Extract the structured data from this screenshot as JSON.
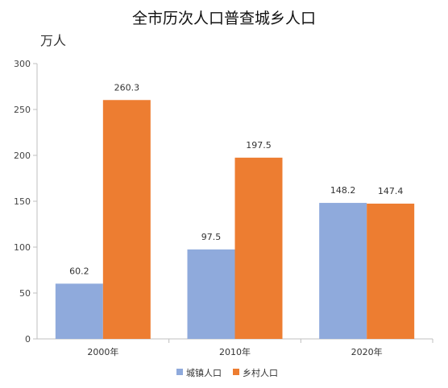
{
  "chart_data": {
    "type": "bar",
    "title": "全市历次人口普查城乡人口",
    "ylabel": "万人",
    "xlabel": "",
    "categories": [
      "2000年",
      "2010年",
      "2020年"
    ],
    "series": [
      {
        "name": "城镇人口",
        "values": [
          60.2,
          97.5,
          148.2
        ],
        "color": "#8FAADC"
      },
      {
        "name": "乡村人口",
        "values": [
          260.3,
          197.5,
          147.4
        ],
        "color": "#ED7D31"
      }
    ],
    "ylim": [
      0,
      300
    ],
    "yticks": [
      0,
      50,
      100,
      150,
      200,
      250,
      300
    ],
    "grid": false,
    "legend_position": "bottom"
  }
}
